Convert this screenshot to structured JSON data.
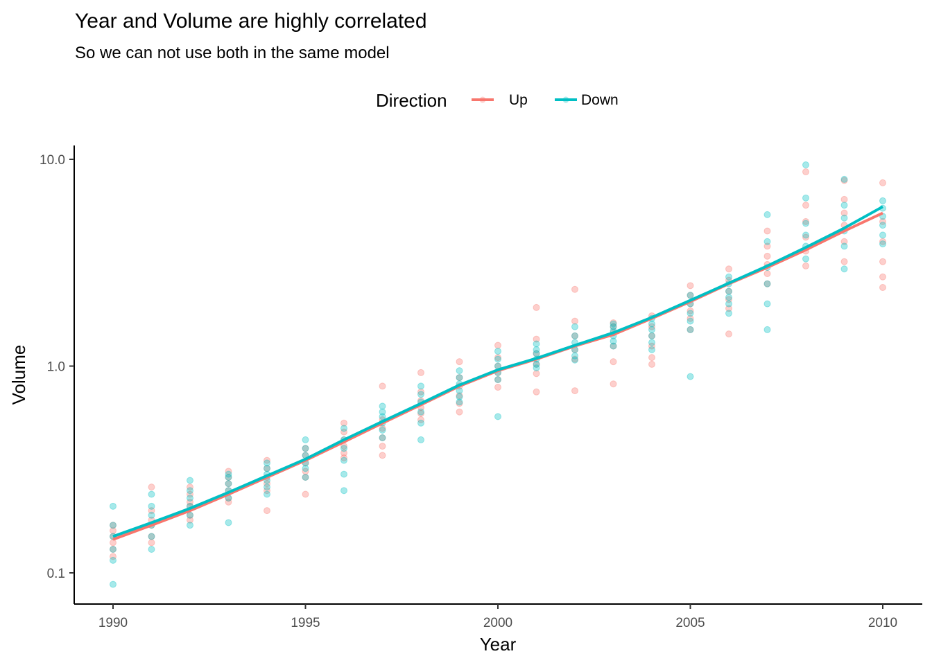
{
  "chart_data": {
    "type": "scatter",
    "title": "Year and Volume are highly correlated",
    "subtitle": "So we can not use both in the same model",
    "xlabel": "Year",
    "ylabel": "Volume",
    "y_scale": "log10",
    "xlim": [
      1989.5,
      2010.5
    ],
    "ylim": [
      0.08,
      11.5
    ],
    "x_ticks": [
      1990,
      1995,
      2000,
      2005,
      2010
    ],
    "x_tick_labels": [
      "1990",
      "1995",
      "2000",
      "2005",
      "2010"
    ],
    "y_ticks": [
      0.1,
      1.0,
      10.0
    ],
    "y_tick_labels": [
      "0.1",
      "1.0",
      "10.0"
    ],
    "grid": false,
    "legend": {
      "title": "Direction",
      "position": "top"
    },
    "series": [
      {
        "name": "Up",
        "color": "#F8766D",
        "trend": {
          "x": [
            1990,
            1991,
            1992,
            1993,
            1994,
            1995,
            1996,
            1997,
            1998,
            1999,
            2000,
            2001,
            2002,
            2003,
            2004,
            2005,
            2006,
            2007,
            2008,
            2009,
            2010
          ],
          "y": [
            0.145,
            0.17,
            0.2,
            0.24,
            0.29,
            0.35,
            0.43,
            0.53,
            0.65,
            0.8,
            0.95,
            1.08,
            1.25,
            1.42,
            1.7,
            2.05,
            2.5,
            3.0,
            3.65,
            4.5,
            5.5
          ]
        },
        "points": {
          "1990": [
            0.12,
            0.13,
            0.14,
            0.15,
            0.16,
            0.17
          ],
          "1991": [
            0.14,
            0.15,
            0.17,
            0.18,
            0.2,
            0.26
          ],
          "1992": [
            0.18,
            0.19,
            0.21,
            0.22,
            0.24,
            0.26
          ],
          "1993": [
            0.22,
            0.23,
            0.25,
            0.27,
            0.29,
            0.31
          ],
          "1994": [
            0.2,
            0.25,
            0.27,
            0.29,
            0.32,
            0.35
          ],
          "1995": [
            0.24,
            0.29,
            0.31,
            0.34,
            0.37,
            0.4
          ],
          "1996": [
            0.36,
            0.38,
            0.41,
            0.44,
            0.48,
            0.53
          ],
          "1997": [
            0.37,
            0.41,
            0.45,
            0.5,
            0.55,
            0.8
          ],
          "1998": [
            0.55,
            0.59,
            0.63,
            0.68,
            0.75,
            0.93
          ],
          "1999": [
            0.6,
            0.66,
            0.72,
            0.8,
            0.88,
            1.05
          ],
          "2000": [
            0.79,
            0.86,
            0.93,
            1.0,
            1.1,
            1.26
          ],
          "2001": [
            0.75,
            0.92,
            1.02,
            1.15,
            1.35,
            1.92
          ],
          "2002": [
            0.76,
            1.08,
            1.2,
            1.4,
            1.65,
            2.35
          ],
          "2003": [
            0.82,
            1.05,
            1.25,
            1.45,
            1.55,
            1.62
          ],
          "2004": [
            1.02,
            1.1,
            1.25,
            1.4,
            1.55,
            1.75
          ],
          "2005": [
            1.5,
            1.7,
            1.85,
            2.0,
            2.2,
            2.45
          ],
          "2006": [
            1.43,
            1.9,
            2.1,
            2.3,
            2.6,
            2.95
          ],
          "2007": [
            2.5,
            2.8,
            3.1,
            3.4,
            3.8,
            4.5
          ],
          "2008": [
            3.05,
            3.6,
            4.2,
            5.0,
            6.0,
            8.7
          ],
          "2009": [
            3.2,
            4.0,
            4.8,
            5.5,
            6.4,
            7.9
          ],
          "2010": [
            2.4,
            2.7,
            3.2,
            4.0,
            5.0,
            7.7
          ]
        }
      },
      {
        "name": "Down",
        "color": "#00BFC4",
        "trend": {
          "x": [
            1990,
            1991,
            1992,
            1993,
            1994,
            1995,
            1996,
            1997,
            1998,
            1999,
            2000,
            2001,
            2002,
            2003,
            2004,
            2005,
            2006,
            2007,
            2008,
            2009,
            2010
          ],
          "y": [
            0.15,
            0.175,
            0.205,
            0.245,
            0.295,
            0.355,
            0.44,
            0.54,
            0.66,
            0.81,
            0.96,
            1.09,
            1.26,
            1.45,
            1.72,
            2.08,
            2.52,
            3.05,
            3.75,
            4.65,
            5.9
          ]
        },
        "points": {
          "1990": [
            0.088,
            0.115,
            0.13,
            0.15,
            0.17,
            0.21
          ],
          "1991": [
            0.13,
            0.15,
            0.17,
            0.19,
            0.21,
            0.24
          ],
          "1992": [
            0.17,
            0.19,
            0.21,
            0.23,
            0.25,
            0.28
          ],
          "1993": [
            0.175,
            0.23,
            0.25,
            0.27,
            0.29,
            0.3
          ],
          "1994": [
            0.24,
            0.26,
            0.28,
            0.3,
            0.32,
            0.34
          ],
          "1995": [
            0.29,
            0.32,
            0.34,
            0.37,
            0.4,
            0.44
          ],
          "1996": [
            0.25,
            0.3,
            0.35,
            0.4,
            0.44,
            0.5
          ],
          "1997": [
            0.45,
            0.49,
            0.53,
            0.57,
            0.6,
            0.64
          ],
          "1998": [
            0.44,
            0.53,
            0.6,
            0.67,
            0.73,
            0.8
          ],
          "1999": [
            0.67,
            0.71,
            0.76,
            0.82,
            0.88,
            0.95
          ],
          "2000": [
            0.57,
            0.86,
            0.93,
            1.0,
            1.08,
            1.18
          ],
          "2001": [
            0.98,
            1.02,
            1.08,
            1.15,
            1.2,
            1.28
          ],
          "2002": [
            1.07,
            1.12,
            1.2,
            1.3,
            1.4,
            1.55
          ],
          "2003": [
            1.25,
            1.32,
            1.4,
            1.48,
            1.55,
            1.6
          ],
          "2004": [
            1.2,
            1.3,
            1.4,
            1.5,
            1.6,
            1.7
          ],
          "2005": [
            0.89,
            1.5,
            1.65,
            1.8,
            2.0,
            2.2
          ],
          "2006": [
            1.8,
            2.0,
            2.15,
            2.3,
            2.5,
            2.7
          ],
          "2007": [
            1.5,
            2.0,
            2.5,
            3.0,
            4.0,
            5.4
          ],
          "2008": [
            3.3,
            3.8,
            4.3,
            4.9,
            6.5,
            9.4
          ],
          "2009": [
            2.95,
            3.8,
            4.5,
            5.2,
            6.0,
            8.0
          ],
          "2010": [
            3.9,
            4.3,
            4.8,
            5.3,
            5.8,
            6.3
          ]
        }
      }
    ]
  }
}
